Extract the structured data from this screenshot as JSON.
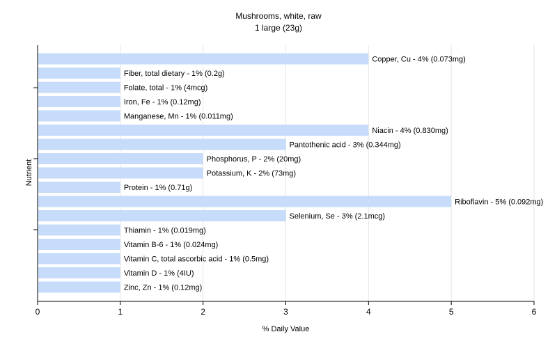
{
  "chart_data": {
    "type": "bar",
    "orientation": "horizontal",
    "title": "Mushrooms, white, raw",
    "subtitle": "1 large (23g)",
    "xlabel": "% Daily Value",
    "ylabel": "Nutrient",
    "xlim": [
      0,
      6
    ],
    "xticks": [
      "0",
      "1",
      "2",
      "3",
      "4",
      "5",
      "6"
    ],
    "grid": true,
    "bar_color": "#c6dcfa",
    "categories": [
      "Copper, Cu",
      "Fiber, total dietary",
      "Folate, total",
      "Iron, Fe",
      "Manganese, Mn",
      "Niacin",
      "Pantothenic acid",
      "Phosphorus, P",
      "Potassium, K",
      "Protein",
      "Riboflavin",
      "Selenium, Se",
      "Thiamin",
      "Vitamin B-6",
      "Vitamin C, total ascorbic acid",
      "Vitamin D",
      "Zinc, Zn"
    ],
    "values": [
      4,
      1,
      1,
      1,
      1,
      4,
      3,
      2,
      2,
      1,
      5,
      3,
      1,
      1,
      1,
      1,
      1
    ],
    "labels": [
      "Copper, Cu - 4% (0.073mg)",
      "Fiber, total dietary - 1% (0.2g)",
      "Folate, total - 1% (4mcg)",
      "Iron, Fe - 1% (0.12mg)",
      "Manganese, Mn - 1% (0.011mg)",
      "Niacin - 4% (0.830mg)",
      "Pantothenic acid - 3% (0.344mg)",
      "Phosphorus, P - 2% (20mg)",
      "Potassium, K - 2% (73mg)",
      "Protein - 1% (0.71g)",
      "Riboflavin - 5% (0.092mg)",
      "Selenium, Se - 3% (2.1mcg)",
      "Thiamin - 1% (0.019mg)",
      "Vitamin B-6 - 1% (0.024mg)",
      "Vitamin C, total ascorbic acid - 1% (0.5mg)",
      "Vitamin D - 1% (4IU)",
      "Zinc, Zn - 1% (0.12mg)"
    ]
  }
}
